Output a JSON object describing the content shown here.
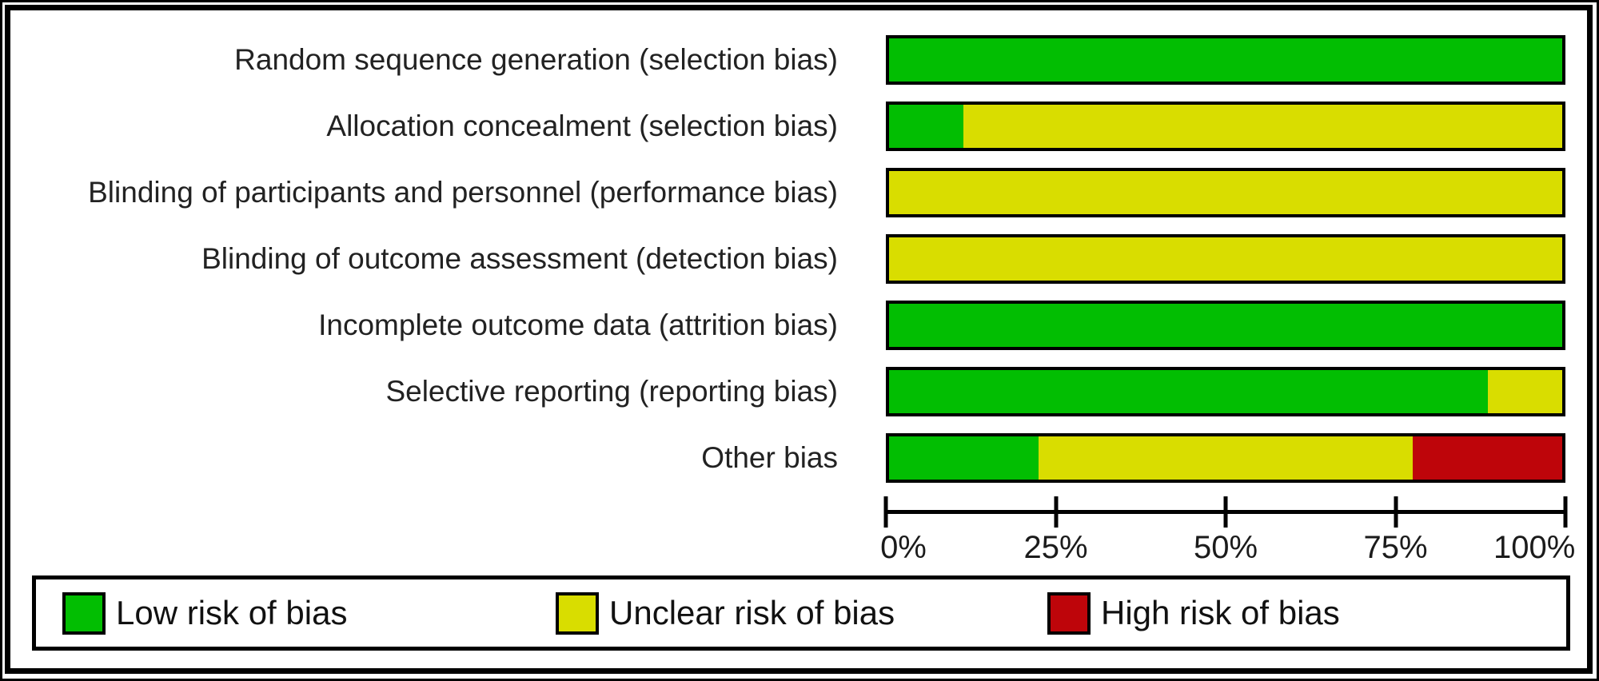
{
  "chart_data": {
    "type": "bar",
    "variant": "horizontal-stacked-percentage",
    "categories": [
      "Random sequence generation (selection bias)",
      "Allocation concealment (selection bias)",
      "Blinding of participants and personnel (performance bias)",
      "Blinding of outcome assessment (detection bias)",
      "Incomplete outcome data (attrition bias)",
      "Selective reporting (reporting bias)",
      "Other bias"
    ],
    "series": [
      {
        "name": "Low risk of bias",
        "color": "#02BE02",
        "values": [
          100,
          11.1,
          0,
          0,
          100,
          88.9,
          22.2
        ]
      },
      {
        "name": "Unclear risk of bias",
        "color": "#D9DD00",
        "values": [
          0,
          88.9,
          100,
          100,
          0,
          11.1,
          55.6
        ]
      },
      {
        "name": "High risk of bias",
        "color": "#BE050A",
        "values": [
          0,
          0,
          0,
          0,
          0,
          0,
          22.2
        ]
      }
    ],
    "xlim": [
      0,
      100
    ],
    "x_ticks": [
      {
        "label": "0%",
        "pct": 0
      },
      {
        "label": "25%",
        "pct": 25
      },
      {
        "label": "50%",
        "pct": 50
      },
      {
        "label": "75%",
        "pct": 75
      },
      {
        "label": "100%",
        "pct": 100
      }
    ],
    "grid": "off",
    "legend": {
      "position": "bottom-boxed",
      "items": [
        {
          "label": "Low risk of bias",
          "color": "#02BE02"
        },
        {
          "label": "Unclear risk of bias",
          "color": "#D9DD00"
        },
        {
          "label": "High risk of bias",
          "color": "#BE050A"
        }
      ]
    },
    "colors": {
      "bar_border": "#000000",
      "frame_border": "#000000",
      "background": "#FFFFFF"
    }
  }
}
